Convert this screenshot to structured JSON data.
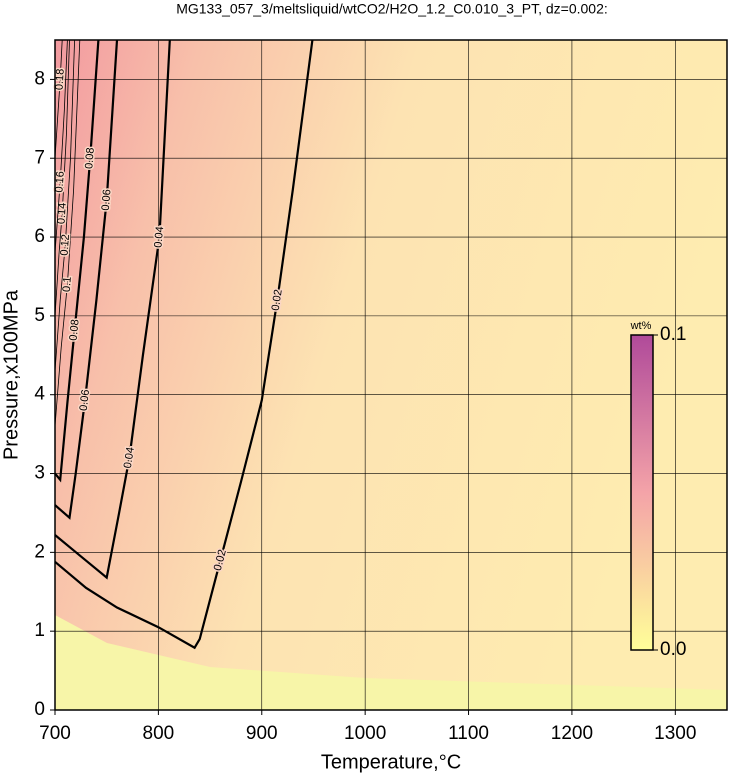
{
  "chart_data": {
    "type": "contour",
    "title": "MG133_057_3/meltsliquid/wtCO2/H2O_1.2_C0.010_3_PT, dz=0.002:",
    "x_label": "Temperature,°C",
    "y_label": "Pressure,x100MPa",
    "xlim": [
      700,
      1350
    ],
    "ylim": [
      0,
      8.5
    ],
    "xticks": [
      700,
      800,
      900,
      1000,
      1100,
      1200,
      1300
    ],
    "yticks": [
      0,
      1,
      2,
      3,
      4,
      5,
      6,
      7,
      8
    ],
    "grid": true,
    "colorbar": {
      "label": "wt%",
      "clim": [
        0,
        0.1
      ],
      "ticks": [
        {
          "value": 0,
          "label": "0.0"
        },
        {
          "value": 0.1,
          "label": "0.1"
        }
      ],
      "colors": [
        "#ffff99",
        "#f4a3a8",
        "#b04a9a"
      ]
    },
    "contours": [
      {
        "level": 0.02,
        "color": "#000000",
        "x": [
          700,
          730,
          760,
          800,
          835,
          840,
          860,
          880,
          900,
          915,
          930,
          949
        ],
        "y": [
          1.88,
          1.55,
          1.3,
          1.05,
          0.79,
          0.9,
          1.9,
          2.9,
          3.93,
          5.2,
          6.6,
          8.5
        ]
      },
      {
        "level": 0.04,
        "color": "#000000",
        "x": [
          700,
          725,
          750,
          762,
          772,
          785,
          801,
          811
        ],
        "y": [
          2.22,
          1.95,
          1.68,
          2.5,
          3.2,
          4.5,
          6.0,
          8.5
        ]
      },
      {
        "level": 0.06,
        "color": "#000000",
        "x": [
          700,
          714,
          720,
          729,
          740,
          750,
          760
        ],
        "y": [
          2.6,
          2.44,
          3.0,
          3.93,
          5.2,
          6.47,
          8.5
        ]
      },
      {
        "level": 0.08,
        "color": "#000000",
        "x": [
          700,
          705,
          712,
          719,
          728,
          734,
          742
        ],
        "y": [
          3.0,
          2.92,
          3.9,
          4.82,
          6.0,
          7.0,
          8.5
        ]
      },
      {
        "level": 0.1,
        "color": "#000000",
        "x": [
          700,
          706,
          712,
          718,
          724
        ],
        "y": [
          3.6,
          4.6,
          5.4,
          6.6,
          8.5
        ]
      },
      {
        "level": 0.12,
        "color": "#000000",
        "x": [
          700,
          705,
          710,
          715,
          719
        ],
        "y": [
          4.3,
          5.2,
          5.9,
          7.0,
          8.5
        ]
      },
      {
        "level": 0.14,
        "color": "#000000",
        "x": [
          700,
          704,
          707,
          711,
          714
        ],
        "y": [
          5.0,
          5.8,
          6.3,
          7.3,
          8.5
        ]
      },
      {
        "level": 0.16,
        "color": "#000000",
        "x": [
          700,
          705,
          709,
          712
        ],
        "y": [
          5.8,
          6.7,
          7.6,
          8.5
        ]
      },
      {
        "level": 0.18,
        "color": "#000000",
        "x": [
          700,
          703,
          705,
          707
        ],
        "y": [
          7.0,
          7.6,
          8.0,
          8.5
        ]
      }
    ]
  }
}
